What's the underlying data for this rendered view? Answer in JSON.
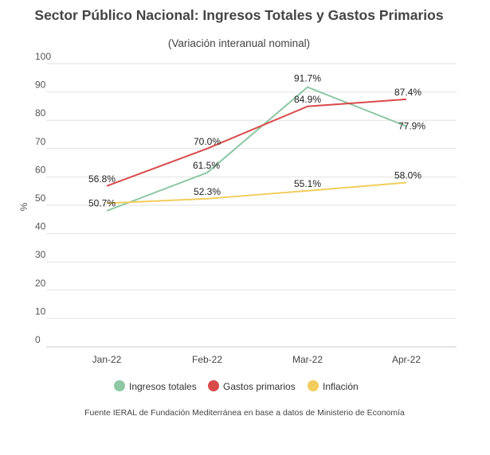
{
  "chart_data": {
    "type": "line",
    "title": "Sector Público Nacional: Ingresos Totales y Gastos Primarios",
    "subtitle": "(Variación interanual nominal)",
    "ylabel": "%",
    "xlabel": "",
    "categories": [
      "Jan-22",
      "Feb-22",
      "Mar-22",
      "Apr-22"
    ],
    "ylim": [
      0,
      100
    ],
    "yticks": [
      "0",
      "10",
      "20",
      "30",
      "40",
      "50",
      "60",
      "70",
      "80",
      "90",
      "100"
    ],
    "grid": true,
    "legend_position": "bottom",
    "series": [
      {
        "name": "Ingresos totales",
        "color": "#8ec8a4",
        "values": [
          48.0,
          61.5,
          91.7,
          77.9
        ],
        "labels": [
          "",
          "61.5%",
          "91.7%",
          "77.9%"
        ]
      },
      {
        "name": "Gastos primarios",
        "color": "#d94a4a",
        "values": [
          56.8,
          70.0,
          84.9,
          87.4
        ],
        "labels": [
          "56.8%",
          "70.0%",
          "84.9%",
          "87.4%"
        ]
      },
      {
        "name": "Inflación",
        "color": "#f2cd5c",
        "values": [
          50.7,
          52.3,
          55.1,
          58.0
        ],
        "labels": [
          "50.7%",
          "52.3%",
          "55.1%",
          "58.0%"
        ]
      }
    ],
    "source": "Fuente IERAL de Fundación Mediterránea en base a datos de Ministerio de Economía"
  }
}
